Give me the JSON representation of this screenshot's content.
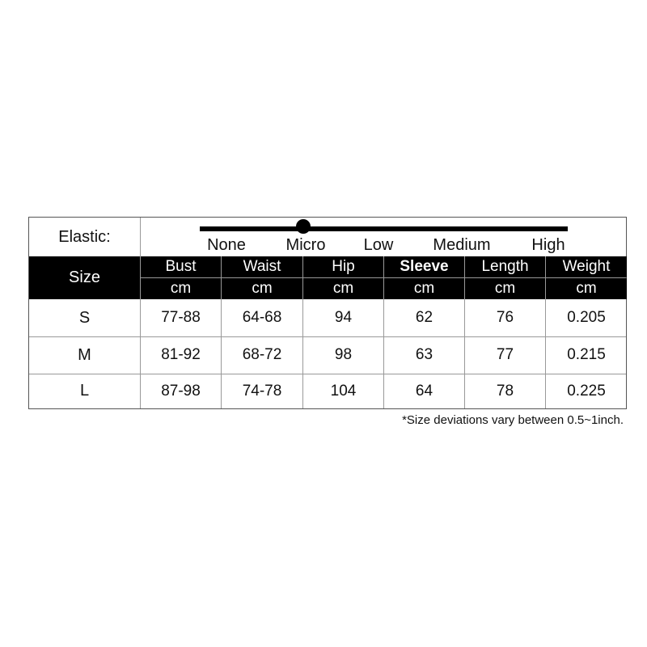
{
  "elastic": {
    "label": "Elastic:",
    "levels": [
      "None",
      "Micro",
      "Low",
      "Medium",
      "High"
    ],
    "selected_index": 1
  },
  "table": {
    "size_header": "Size",
    "columns": [
      {
        "name": "Bust",
        "unit": "cm"
      },
      {
        "name": "Waist",
        "unit": "cm"
      },
      {
        "name": "Hip",
        "unit": "cm"
      },
      {
        "name": "Sleeve",
        "unit": "cm"
      },
      {
        "name": "Length",
        "unit": "cm"
      },
      {
        "name": "Weight",
        "unit": "cm"
      }
    ],
    "rows": [
      {
        "size": "S",
        "values": [
          "77-88",
          "64-68",
          "94",
          "62",
          "76",
          "0.205"
        ]
      },
      {
        "size": "M",
        "values": [
          "81-92",
          "68-72",
          "98",
          "63",
          "77",
          "0.215"
        ]
      },
      {
        "size": "L",
        "values": [
          "87-98",
          "74-78",
          "104",
          "64",
          "78",
          "0.225"
        ]
      }
    ]
  },
  "footnote": "*Size deviations vary between 0.5~1inch."
}
